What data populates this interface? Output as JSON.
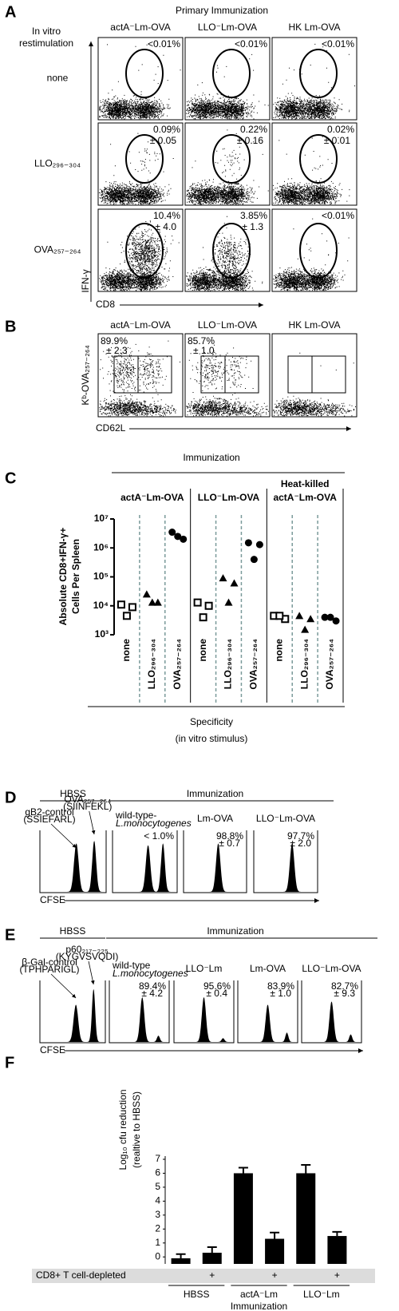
{
  "panel_a": {
    "label": "A",
    "title": "Primary Immunization",
    "columns": [
      "actA⁻Lm-OVA",
      "LLO⁻Lm-OVA",
      "HK Lm-OVA"
    ],
    "row_header": [
      "In vitro",
      "restimulation"
    ],
    "rows": [
      {
        "label": "none",
        "cells": [
          {
            "pct": "<0.01%"
          },
          {
            "pct": "<0.01%"
          },
          {
            "pct": "<0.01%"
          }
        ]
      },
      {
        "label": "LLO₂₉₆₋₃₀₄",
        "cells": [
          {
            "pct": "0.09%",
            "sd": "± 0.05"
          },
          {
            "pct": "0.22%",
            "sd": "± 0.16"
          },
          {
            "pct": "0.02%",
            "sd": "± 0.01"
          }
        ]
      },
      {
        "label": "OVA₂₅₇₋₂₆₄",
        "cells": [
          {
            "pct": "10.4%",
            "sd": "± 4.0"
          },
          {
            "pct": "3.85%",
            "sd": "± 1.3"
          },
          {
            "pct": "<0.01%"
          }
        ]
      }
    ],
    "y_axis": "IFN-γ",
    "x_axis": "CD8"
  },
  "panel_b": {
    "label": "B",
    "columns": [
      "actA⁻Lm-OVA",
      "LLO⁻Lm-OVA",
      "HK Lm-OVA"
    ],
    "cells": [
      {
        "pct": "89.9%",
        "sd": "± 2.3"
      },
      {
        "pct": "85.7%",
        "sd": "± 1.0"
      }
    ],
    "y_axis": "Kᵇ-OVA₂₅₇₋₂₆₄",
    "x_axis": "CD62L"
  },
  "chart_data": [
    {
      "type": "dotplot",
      "panel_label": "C",
      "title": "Immunization",
      "y_label": [
        "Absolute CD8+IFN-γ+",
        "Cells Per Spleen"
      ],
      "x_label": [
        "Specificity",
        "(in vitro stimulus)"
      ],
      "log_y": true,
      "ylim": [
        1000,
        10000000
      ],
      "yticks": [
        {
          "value": 1000,
          "label": "10³"
        },
        {
          "value": 10000,
          "label": "10⁴"
        },
        {
          "value": 100000,
          "label": "10⁵"
        },
        {
          "value": 1000000,
          "label": "10⁶"
        },
        {
          "value": 10000000,
          "label": "10⁷"
        }
      ],
      "markers": [
        "square",
        "triangle",
        "circle"
      ],
      "color": "#000000",
      "groups": [
        {
          "name": [
            "actA⁻Lm-OVA"
          ],
          "categories": [
            "none",
            "LLO₂₉₆₋₃₀₄",
            "OVA₂₅₇₋₂₆₄"
          ],
          "values": [
            [
              11000,
              9000,
              4500
            ],
            [
              25000,
              13000,
              13000
            ],
            [
              3500000,
              2000000,
              2500000
            ]
          ]
        },
        {
          "name": [
            "LLO⁻Lm-OVA"
          ],
          "categories": [
            "none",
            "LLO₂₉₆₋₃₀₄",
            "OVA₂₅₇₋₂₆₄"
          ],
          "values": [
            [
              13000,
              10000,
              4000
            ],
            [
              90000,
              60000,
              13000
            ],
            [
              1500000,
              1300000,
              400000
            ]
          ]
        },
        {
          "name": [
            "Heat-killed",
            "actA⁻Lm-OVA"
          ],
          "categories": [
            "none",
            "LLO₂₉₆₋₃₀₄",
            "OVA₂₅₇₋₂₆₄"
          ],
          "values": [
            [
              4500,
              3500,
              4500
            ],
            [
              4500,
              3500,
              1500
            ],
            [
              4000,
              3000,
              4000
            ]
          ]
        }
      ]
    },
    {
      "type": "bar",
      "panel_label": "F",
      "y_label": [
        "Log₁₀ cfu reduction",
        "(realtive to HBSS)"
      ],
      "values": [
        -0.1,
        0.3,
        6.0,
        1.3,
        6.0,
        1.5
      ],
      "errors": [
        0.3,
        0.4,
        0.4,
        0.45,
        0.6,
        0.3
      ],
      "color": "#000000",
      "ylim": [
        -0.5,
        7
      ],
      "yticks": [
        0,
        1,
        2,
        3,
        4,
        5,
        6,
        7
      ],
      "row_label": "CD8+ T cell-depleted",
      "categories": [
        null,
        "+",
        null,
        "+",
        null,
        "+"
      ],
      "groups": [
        "HBSS",
        "actA⁻Lm",
        "LLO⁻Lm"
      ],
      "x_label": "Immunization"
    }
  ],
  "panel_d": {
    "label": "D",
    "hbss": "HBSS",
    "immunization": "Immunization",
    "peaks": [
      {
        "name": "gB2-control",
        "seq": "(SSIEFARL)"
      },
      {
        "name": "OVA₂₅₇₋₂₆₄",
        "seq": "(SIINFEKL)"
      }
    ],
    "plots": [
      {
        "title": [
          "wild-type-",
          "L.monocytogenes"
        ],
        "pct": "< 1.0%"
      },
      {
        "title": [
          "Lm-OVA"
        ],
        "pct": "98.8%",
        "sd": "± 0.7"
      },
      {
        "title": [
          "LLO⁻Lm-OVA"
        ],
        "pct": "97.7%",
        "sd": "± 2.0"
      }
    ],
    "x_axis": "CFSE"
  },
  "panel_e": {
    "label": "E",
    "hbss": "HBSS",
    "immunization": "Immunization",
    "peaks": [
      {
        "name": "β-Gal-control",
        "seq": "(TPHPARIGL)"
      },
      {
        "name": "p60₂₁₇₋₂₂₅",
        "seq": "(KYGVSVQDI)"
      }
    ],
    "plots": [
      {
        "title": [
          "wild-type",
          "L.monocytogenes"
        ],
        "pct": "89.4%",
        "sd": "± 4.2"
      },
      {
        "title": [
          "LLO⁻Lm"
        ],
        "pct": "95.6%",
        "sd": "± 0.4"
      },
      {
        "title": [
          "Lm-OVA"
        ],
        "pct": "83.9%",
        "sd": "± 1.0"
      },
      {
        "title": [
          "LLO⁻Lm-OVA"
        ],
        "pct": "82.7%",
        "sd": "± 9.3"
      }
    ],
    "x_axis": "CFSE"
  }
}
